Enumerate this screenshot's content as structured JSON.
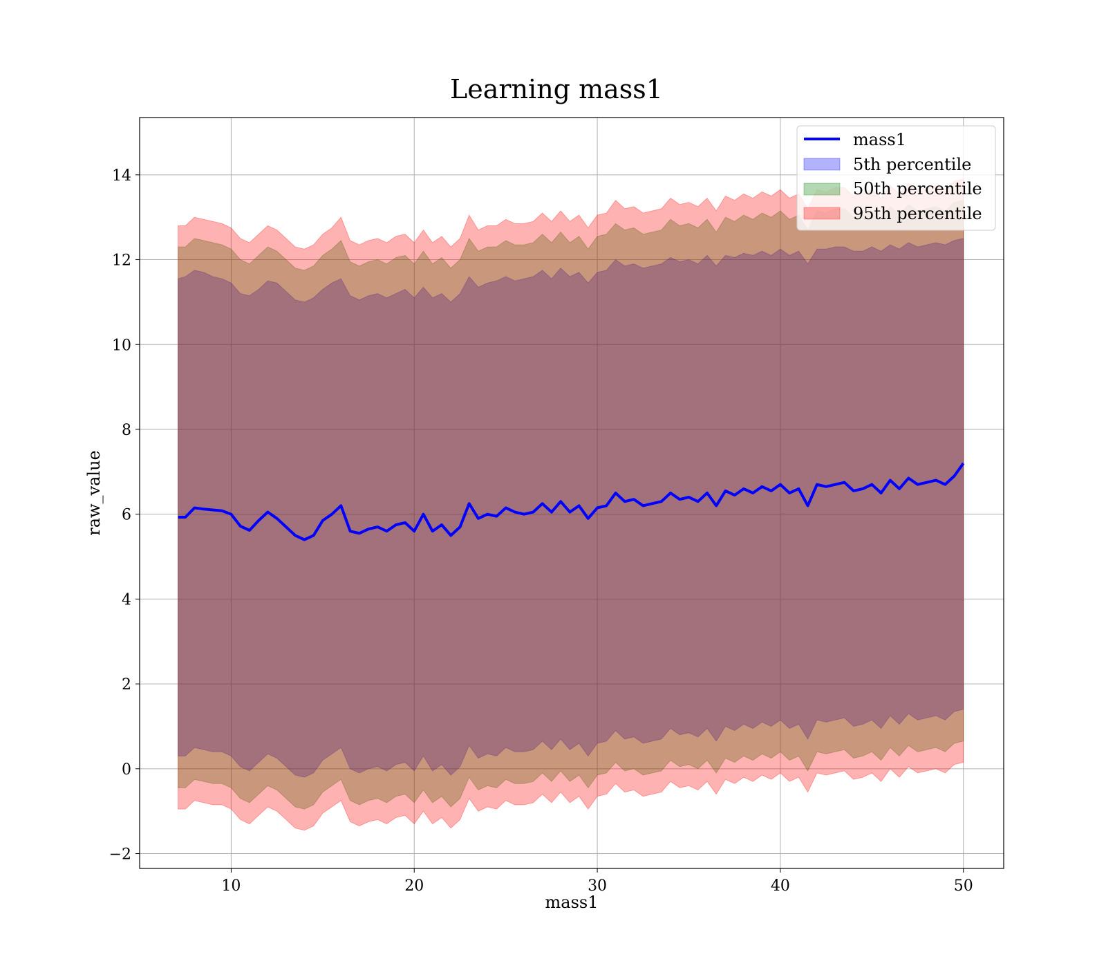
{
  "chart_data": {
    "type": "area",
    "title": "Learning mass1",
    "xlabel": "mass1",
    "ylabel": "raw_value",
    "xlim": [
      5,
      52.2
    ],
    "ylim": [
      -2.35,
      15.35
    ],
    "xticks": [
      10,
      20,
      30,
      40,
      50
    ],
    "yticks": [
      -2,
      0,
      2,
      4,
      6,
      8,
      10,
      12,
      14
    ],
    "ytick_labels": [
      "−2",
      "0",
      "2",
      "4",
      "6",
      "8",
      "10",
      "12",
      "14"
    ],
    "grid": true,
    "legend_position": "top-right",
    "x_range": [
      7.1,
      50
    ],
    "line": {
      "name": "mass1",
      "color": "#0000ff",
      "x": [
        7.1,
        7.5,
        8.0,
        8.5,
        9.0,
        9.5,
        10.0,
        10.5,
        11.0,
        11.5,
        12.0,
        12.5,
        13.0,
        13.5,
        14.0,
        14.5,
        15.0,
        15.5,
        16.0,
        16.5,
        17.0,
        17.5,
        18.0,
        18.5,
        19.0,
        19.5,
        20.0,
        20.5,
        21.0,
        21.5,
        22.0,
        22.5,
        23.0,
        23.5,
        24.0,
        24.5,
        25.0,
        25.5,
        26.0,
        26.5,
        27.0,
        27.5,
        28.0,
        28.5,
        29.0,
        29.5,
        30.0,
        30.5,
        31.0,
        31.5,
        32.0,
        32.5,
        33.0,
        33.5,
        34.0,
        34.5,
        35.0,
        35.5,
        36.0,
        36.5,
        37.0,
        37.5,
        38.0,
        38.5,
        39.0,
        39.5,
        40.0,
        40.5,
        41.0,
        41.5,
        42.0,
        42.5,
        43.0,
        43.5,
        44.0,
        44.5,
        45.0,
        45.5,
        46.0,
        46.5,
        47.0,
        47.5,
        48.0,
        48.5,
        49.0,
        49.5,
        50.0
      ],
      "y": [
        5.93,
        5.93,
        6.15,
        6.12,
        6.1,
        6.08,
        6.0,
        5.72,
        5.62,
        5.85,
        6.05,
        5.9,
        5.7,
        5.5,
        5.4,
        5.5,
        5.85,
        6.0,
        6.2,
        5.6,
        5.55,
        5.65,
        5.7,
        5.6,
        5.75,
        5.8,
        5.6,
        6.0,
        5.6,
        5.75,
        5.5,
        5.7,
        6.25,
        5.9,
        6.0,
        5.95,
        6.15,
        6.05,
        6.0,
        6.05,
        6.25,
        6.05,
        6.3,
        6.05,
        6.2,
        5.9,
        6.15,
        6.2,
        6.5,
        6.3,
        6.35,
        6.2,
        6.25,
        6.3,
        6.5,
        6.35,
        6.4,
        6.3,
        6.5,
        6.2,
        6.55,
        6.45,
        6.6,
        6.5,
        6.65,
        6.55,
        6.7,
        6.5,
        6.6,
        6.2,
        6.7,
        6.65,
        6.7,
        6.75,
        6.55,
        6.6,
        6.7,
        6.5,
        6.8,
        6.6,
        6.85,
        6.7,
        6.75,
        6.8,
        6.7,
        6.9,
        7.2
      ]
    },
    "bands": [
      {
        "name": "5th percentile",
        "color": "#0000ff",
        "upper": [
          11.55,
          11.6,
          11.75,
          11.7,
          11.6,
          11.55,
          11.45,
          11.2,
          11.15,
          11.3,
          11.5,
          11.45,
          11.25,
          11.05,
          11.0,
          11.1,
          11.3,
          11.45,
          11.55,
          11.15,
          11.05,
          11.15,
          11.2,
          11.1,
          11.2,
          11.3,
          11.1,
          11.35,
          11.1,
          11.2,
          11.0,
          11.2,
          11.6,
          11.35,
          11.45,
          11.5,
          11.6,
          11.5,
          11.55,
          11.6,
          11.75,
          11.55,
          11.8,
          11.6,
          11.7,
          11.45,
          11.7,
          11.75,
          12.0,
          11.85,
          11.9,
          11.8,
          11.85,
          11.9,
          12.05,
          11.95,
          12.0,
          11.9,
          12.1,
          11.85,
          12.1,
          12.05,
          12.15,
          12.1,
          12.2,
          12.1,
          12.25,
          12.1,
          12.2,
          11.9,
          12.25,
          12.25,
          12.3,
          12.3,
          12.2,
          12.2,
          12.3,
          12.2,
          12.35,
          12.25,
          12.4,
          12.3,
          12.35,
          12.4,
          12.35,
          12.45,
          12.5
        ],
        "lower": [
          0.3,
          0.3,
          0.5,
          0.45,
          0.4,
          0.4,
          0.3,
          0.05,
          -0.05,
          0.15,
          0.35,
          0.25,
          0.05,
          -0.15,
          -0.2,
          -0.1,
          0.2,
          0.35,
          0.5,
          0.0,
          -0.1,
          0.0,
          0.05,
          -0.05,
          0.1,
          0.15,
          -0.05,
          0.3,
          -0.05,
          0.1,
          -0.15,
          0.05,
          0.55,
          0.25,
          0.35,
          0.3,
          0.5,
          0.4,
          0.4,
          0.45,
          0.65,
          0.45,
          0.7,
          0.45,
          0.6,
          0.3,
          0.6,
          0.65,
          0.9,
          0.7,
          0.75,
          0.6,
          0.65,
          0.7,
          0.95,
          0.8,
          0.85,
          0.75,
          0.95,
          0.65,
          1.0,
          0.9,
          1.05,
          0.95,
          1.1,
          1.0,
          1.15,
          0.95,
          1.05,
          0.7,
          1.15,
          1.1,
          1.15,
          1.2,
          1.0,
          1.05,
          1.15,
          0.95,
          1.25,
          1.05,
          1.3,
          1.15,
          1.2,
          1.25,
          1.15,
          1.35,
          1.4
        ]
      },
      {
        "name": "50th percentile",
        "color": "#008000",
        "upper": [
          12.3,
          12.3,
          12.5,
          12.45,
          12.4,
          12.35,
          12.25,
          12.0,
          11.9,
          12.1,
          12.3,
          12.2,
          12.0,
          11.8,
          11.75,
          11.85,
          12.1,
          12.25,
          12.45,
          11.95,
          11.85,
          11.95,
          12.0,
          11.9,
          12.05,
          12.1,
          11.9,
          12.2,
          11.9,
          12.05,
          11.8,
          12.0,
          12.5,
          12.2,
          12.3,
          12.3,
          12.45,
          12.35,
          12.35,
          12.4,
          12.6,
          12.4,
          12.65,
          12.4,
          12.55,
          12.25,
          12.55,
          12.6,
          12.85,
          12.7,
          12.75,
          12.6,
          12.65,
          12.7,
          12.95,
          12.8,
          12.85,
          12.75,
          12.95,
          12.65,
          13.0,
          12.9,
          13.05,
          12.95,
          13.1,
          13.0,
          13.15,
          12.95,
          13.05,
          12.7,
          13.15,
          13.1,
          13.2,
          13.2,
          13.0,
          13.05,
          13.15,
          12.95,
          13.25,
          13.05,
          13.3,
          13.15,
          13.2,
          13.25,
          13.15,
          13.35,
          13.4
        ],
        "lower": [
          -0.45,
          -0.45,
          -0.25,
          -0.3,
          -0.35,
          -0.35,
          -0.45,
          -0.7,
          -0.8,
          -0.6,
          -0.4,
          -0.5,
          -0.7,
          -0.9,
          -0.95,
          -0.85,
          -0.55,
          -0.4,
          -0.25,
          -0.75,
          -0.85,
          -0.75,
          -0.7,
          -0.8,
          -0.65,
          -0.6,
          -0.8,
          -0.5,
          -0.8,
          -0.65,
          -0.9,
          -0.7,
          -0.2,
          -0.5,
          -0.4,
          -0.45,
          -0.25,
          -0.35,
          -0.35,
          -0.3,
          -0.1,
          -0.3,
          -0.05,
          -0.3,
          -0.15,
          -0.45,
          -0.15,
          -0.1,
          0.15,
          -0.05,
          0.0,
          -0.15,
          -0.1,
          -0.05,
          0.2,
          0.05,
          0.1,
          0.0,
          0.2,
          -0.1,
          0.25,
          0.15,
          0.3,
          0.2,
          0.35,
          0.25,
          0.4,
          0.2,
          0.3,
          -0.05,
          0.4,
          0.35,
          0.4,
          0.45,
          0.25,
          0.3,
          0.4,
          0.2,
          0.5,
          0.3,
          0.55,
          0.4,
          0.45,
          0.5,
          0.4,
          0.6,
          0.65
        ]
      },
      {
        "name": "95th percentile",
        "color": "#ff0000",
        "upper": [
          12.8,
          12.8,
          13.0,
          12.95,
          12.9,
          12.85,
          12.75,
          12.5,
          12.4,
          12.6,
          12.8,
          12.7,
          12.5,
          12.3,
          12.25,
          12.35,
          12.6,
          12.75,
          13.0,
          12.45,
          12.35,
          12.45,
          12.5,
          12.4,
          12.55,
          12.6,
          12.4,
          12.7,
          12.4,
          12.55,
          12.3,
          12.5,
          13.05,
          12.7,
          12.8,
          12.8,
          12.95,
          12.85,
          12.85,
          12.9,
          13.1,
          12.9,
          13.15,
          12.9,
          13.05,
          12.75,
          13.05,
          13.1,
          13.4,
          13.2,
          13.25,
          13.1,
          13.15,
          13.2,
          13.45,
          13.3,
          13.35,
          13.25,
          13.45,
          13.15,
          13.5,
          13.4,
          13.55,
          13.45,
          13.6,
          13.5,
          13.65,
          13.45,
          13.55,
          13.2,
          13.65,
          13.6,
          13.7,
          13.7,
          13.5,
          13.55,
          13.65,
          13.45,
          13.75,
          13.55,
          13.8,
          13.65,
          13.7,
          13.75,
          13.65,
          13.85,
          13.9
        ],
        "lower": [
          -0.95,
          -0.95,
          -0.75,
          -0.8,
          -0.85,
          -0.85,
          -0.95,
          -1.2,
          -1.3,
          -1.1,
          -0.9,
          -1.0,
          -1.2,
          -1.4,
          -1.45,
          -1.35,
          -1.05,
          -0.9,
          -0.75,
          -1.25,
          -1.35,
          -1.25,
          -1.2,
          -1.3,
          -1.15,
          -1.1,
          -1.3,
          -1.0,
          -1.3,
          -1.15,
          -1.4,
          -1.2,
          -0.7,
          -1.0,
          -0.9,
          -0.95,
          -0.75,
          -0.85,
          -0.85,
          -0.8,
          -0.6,
          -0.8,
          -0.55,
          -0.8,
          -0.65,
          -0.95,
          -0.65,
          -0.6,
          -0.35,
          -0.55,
          -0.5,
          -0.65,
          -0.6,
          -0.55,
          -0.3,
          -0.45,
          -0.4,
          -0.5,
          -0.3,
          -0.6,
          -0.25,
          -0.35,
          -0.2,
          -0.3,
          -0.15,
          -0.25,
          -0.1,
          -0.3,
          -0.2,
          -0.55,
          -0.1,
          -0.15,
          -0.1,
          -0.05,
          -0.25,
          -0.2,
          -0.1,
          -0.3,
          0.0,
          -0.2,
          0.05,
          -0.1,
          -0.05,
          0.0,
          -0.1,
          0.1,
          0.15
        ]
      }
    ],
    "legend": [
      "mass1",
      "5th percentile",
      "50th percentile",
      "95th percentile"
    ]
  }
}
